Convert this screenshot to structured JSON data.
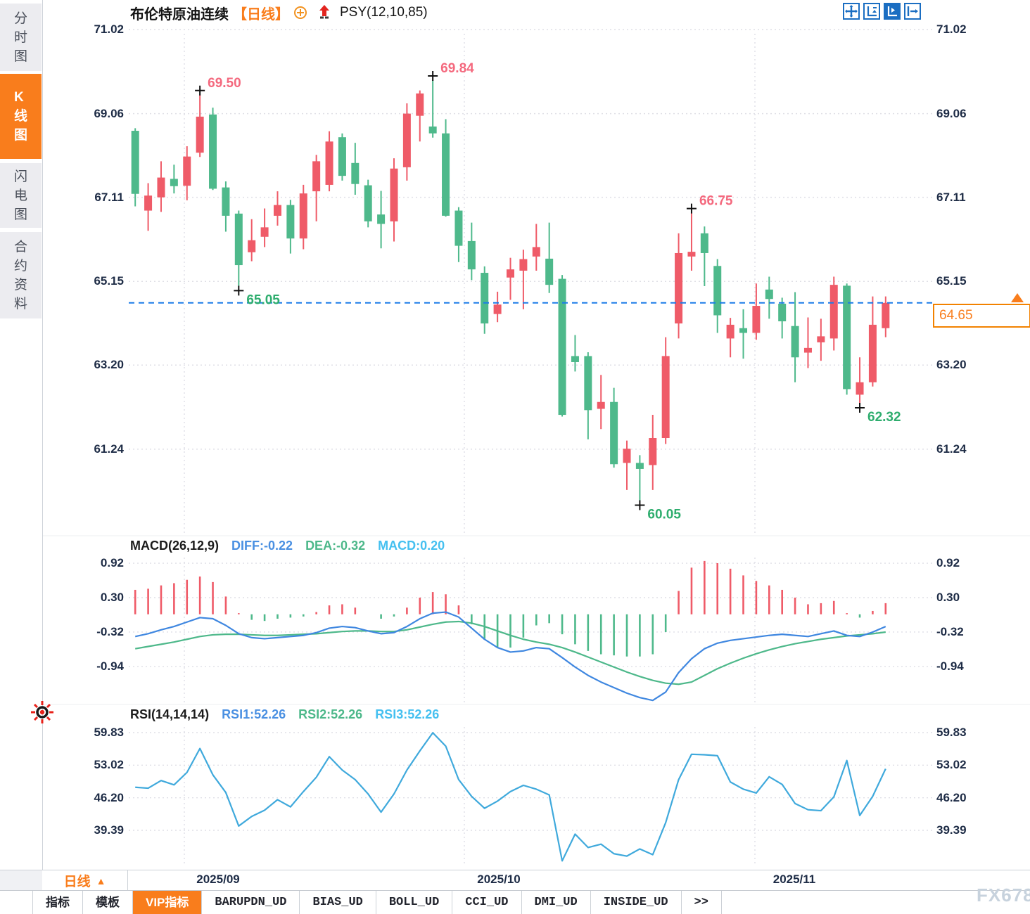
{
  "sidebar": {
    "tabs": [
      {
        "label": "分时图",
        "active": false
      },
      {
        "label": "K线图",
        "active": true
      },
      {
        "label": "闪电图",
        "active": false
      },
      {
        "label": "合约资料",
        "active": false
      }
    ]
  },
  "header": {
    "symbol": "布伦特原油连续",
    "period_tag": "【日线】",
    "indicator": "PSY(12,10,85)"
  },
  "toolbar": {
    "buttons": [
      "crosshair",
      "axis-scale-vertical",
      "axis-scale-auto",
      "pan-right"
    ]
  },
  "price_marker": {
    "value": "64.65",
    "color": "#f97d1c"
  },
  "period_selector": {
    "label": "日线",
    "arrow": "▲"
  },
  "xaxis_labels": [
    "2025/09",
    "2025/10",
    "2025/11"
  ],
  "footer_tabs": [
    "指标",
    "模板",
    "VIP指标",
    "BARUPDN_UD",
    "BIAS_UD",
    "BOLL_UD",
    "CCI_UD",
    "DMI_UD",
    "INSIDE_UD",
    ">>"
  ],
  "watermark": "FX678",
  "macd_header": {
    "name": "MACD(26,12,9)",
    "diff": "DIFF:-0.22",
    "dea": "DEA:-0.32",
    "macd": "MACD:0.20"
  },
  "rsi_header": {
    "name": "RSI(14,14,14)",
    "rsi1": "RSI1:52.26",
    "rsi2": "RSI2:52.26",
    "rsi3": "RSI3:52.26"
  },
  "colors": {
    "up": "#ef5b68",
    "down": "#4eb98b",
    "accent_orange": "#f97d1c",
    "dashed_line_blue": "#1b7ce8",
    "ann_high": "#f4697e",
    "ann_low": "#2ead6e",
    "diff_line": "#3f87e0",
    "dea_line": "#4db88a",
    "rsi_line": "#3fa9dc",
    "grid": "#dfdfe6",
    "axis_text": "#1d2b45",
    "toolbar_blue": "#1b6ec2"
  },
  "chart_data": [
    {
      "type": "candlestick",
      "title": "布伦特原油连续 日线",
      "y_ticks": [
        71.02,
        69.06,
        67.11,
        65.15,
        63.2,
        61.24
      ],
      "ylim": [
        60.0,
        71.35
      ],
      "x_labels": [
        "2025/09",
        "2025/10",
        "2025/11"
      ],
      "grid": "dotted",
      "last_price": 64.65,
      "ohlc": [
        [
          68.66,
          68.72,
          66.9,
          67.19
        ],
        [
          66.8,
          67.44,
          66.33,
          67.15
        ],
        [
          67.11,
          67.95,
          66.77,
          67.57
        ],
        [
          67.54,
          67.87,
          67.2,
          67.37
        ],
        [
          67.38,
          68.3,
          67.04,
          68.06
        ],
        [
          68.15,
          69.5,
          68.05,
          68.99
        ],
        [
          69.04,
          69.2,
          67.28,
          67.31
        ],
        [
          67.34,
          67.48,
          66.31,
          66.68
        ],
        [
          66.73,
          66.8,
          65.05,
          65.53
        ],
        [
          65.83,
          66.6,
          65.62,
          66.11
        ],
        [
          66.19,
          66.85,
          65.95,
          66.41
        ],
        [
          66.68,
          67.25,
          66.45,
          66.93
        ],
        [
          66.93,
          67.05,
          65.8,
          66.15
        ],
        [
          66.15,
          67.4,
          65.9,
          67.2
        ],
        [
          67.25,
          68.1,
          66.55,
          67.95
        ],
        [
          67.4,
          68.65,
          67.25,
          68.41
        ],
        [
          68.51,
          68.6,
          67.5,
          67.61
        ],
        [
          67.91,
          68.38,
          67.17,
          67.42
        ],
        [
          67.39,
          67.52,
          66.41,
          66.55
        ],
        [
          66.71,
          67.26,
          65.92,
          66.49
        ],
        [
          66.55,
          68.02,
          66.08,
          67.78
        ],
        [
          67.81,
          69.3,
          67.5,
          69.06
        ],
        [
          69.01,
          69.6,
          68.41,
          69.53
        ],
        [
          68.76,
          69.84,
          68.5,
          68.6
        ],
        [
          68.6,
          68.93,
          66.66,
          66.68
        ],
        [
          66.8,
          66.88,
          65.6,
          65.98
        ],
        [
          66.09,
          66.52,
          65.18,
          65.43
        ],
        [
          65.35,
          65.5,
          63.93,
          64.17
        ],
        [
          64.39,
          64.91,
          64.2,
          64.61
        ],
        [
          65.24,
          65.7,
          64.72,
          65.43
        ],
        [
          65.4,
          65.89,
          64.5,
          65.67
        ],
        [
          65.73,
          66.49,
          65.4,
          65.95
        ],
        [
          65.68,
          66.52,
          64.88,
          65.07
        ],
        [
          65.21,
          65.3,
          62.0,
          62.04
        ],
        [
          63.41,
          63.9,
          63.05,
          63.27
        ],
        [
          63.41,
          63.5,
          61.47,
          62.15
        ],
        [
          62.18,
          62.97,
          61.71,
          62.34
        ],
        [
          62.34,
          62.67,
          60.81,
          60.89
        ],
        [
          60.92,
          61.44,
          60.29,
          61.25
        ],
        [
          60.92,
          61.1,
          60.05,
          60.78
        ],
        [
          60.87,
          62.04,
          60.29,
          61.5
        ],
        [
          61.5,
          63.85,
          61.36,
          63.41
        ],
        [
          64.17,
          66.27,
          63.82,
          65.81
        ],
        [
          65.73,
          66.75,
          65.4,
          65.84
        ],
        [
          66.27,
          66.43,
          65.04,
          65.81
        ],
        [
          65.51,
          65.67,
          63.95,
          64.36
        ],
        [
          63.82,
          64.3,
          63.38,
          64.14
        ],
        [
          64.06,
          64.5,
          63.35,
          63.95
        ],
        [
          63.95,
          65.1,
          63.79,
          64.58
        ],
        [
          64.96,
          65.26,
          64.28,
          64.74
        ],
        [
          64.63,
          64.77,
          63.82,
          64.22
        ],
        [
          64.11,
          64.9,
          62.8,
          63.38
        ],
        [
          63.49,
          64.31,
          63.13,
          63.6
        ],
        [
          63.73,
          64.28,
          63.3,
          63.87
        ],
        [
          63.82,
          65.26,
          63.54,
          65.07
        ],
        [
          65.05,
          65.1,
          62.51,
          62.64
        ],
        [
          62.51,
          63.38,
          62.32,
          62.8
        ],
        [
          62.8,
          64.8,
          62.7,
          64.14
        ],
        [
          64.06,
          64.8,
          63.85,
          64.65
        ]
      ],
      "annotations": [
        {
          "i": 5,
          "side": "high",
          "label": "69.50"
        },
        {
          "i": 23,
          "side": "high",
          "label": "69.84"
        },
        {
          "i": 43,
          "side": "high",
          "label": "66.75"
        },
        {
          "i": 8,
          "side": "low",
          "label": "65.05"
        },
        {
          "i": 39,
          "side": "low",
          "label": "60.05"
        },
        {
          "i": 56,
          "side": "low",
          "label": "62.32"
        }
      ]
    },
    {
      "type": "macd",
      "name": "MACD(26,12,9)",
      "y_ticks": [
        0.92,
        0.3,
        -0.32,
        -0.94
      ],
      "current": {
        "diff": -0.22,
        "dea": -0.32,
        "macd": 0.2
      },
      "hist_rule": "2*(diff-dea)",
      "diff": [
        -0.4,
        -0.35,
        -0.28,
        -0.22,
        -0.14,
        -0.06,
        -0.08,
        -0.2,
        -0.35,
        -0.42,
        -0.44,
        -0.42,
        -0.4,
        -0.38,
        -0.33,
        -0.25,
        -0.22,
        -0.24,
        -0.3,
        -0.35,
        -0.33,
        -0.22,
        -0.08,
        0.02,
        0.04,
        -0.05,
        -0.25,
        -0.45,
        -0.6,
        -0.68,
        -0.66,
        -0.6,
        -0.62,
        -0.78,
        -0.95,
        -1.1,
        -1.22,
        -1.32,
        -1.42,
        -1.5,
        -1.55,
        -1.4,
        -1.05,
        -0.8,
        -0.62,
        -0.52,
        -0.47,
        -0.44,
        -0.41,
        -0.38,
        -0.36,
        -0.38,
        -0.4,
        -0.35,
        -0.3,
        -0.38,
        -0.4,
        -0.32,
        -0.22
      ],
      "dea": [
        -0.62,
        -0.58,
        -0.54,
        -0.5,
        -0.45,
        -0.4,
        -0.37,
        -0.36,
        -0.36,
        -0.37,
        -0.38,
        -0.38,
        -0.37,
        -0.36,
        -0.35,
        -0.33,
        -0.31,
        -0.3,
        -0.3,
        -0.31,
        -0.31,
        -0.28,
        -0.23,
        -0.18,
        -0.14,
        -0.13,
        -0.16,
        -0.22,
        -0.3,
        -0.38,
        -0.45,
        -0.5,
        -0.54,
        -0.6,
        -0.68,
        -0.77,
        -0.86,
        -0.95,
        -1.04,
        -1.12,
        -1.19,
        -1.24,
        -1.26,
        -1.22,
        -1.1,
        -0.98,
        -0.88,
        -0.79,
        -0.71,
        -0.64,
        -0.58,
        -0.53,
        -0.49,
        -0.45,
        -0.42,
        -0.39,
        -0.37,
        -0.35,
        -0.32
      ]
    },
    {
      "type": "rsi",
      "name": "RSI(14,14,14)",
      "y_ticks": [
        59.83,
        53.02,
        46.2,
        39.39
      ],
      "current": {
        "rsi1": 52.26,
        "rsi2": 52.26,
        "rsi3": 52.26
      },
      "values": [
        48.4,
        48.2,
        49.8,
        48.9,
        51.5,
        56.5,
        51.0,
        47.3,
        40.3,
        42.3,
        43.6,
        45.8,
        44.3,
        47.5,
        50.5,
        54.8,
        52.0,
        50.0,
        47.0,
        43.2,
        47.0,
        52.0,
        56.0,
        59.8,
        57.0,
        50.0,
        46.5,
        44.0,
        45.5,
        47.5,
        48.8,
        48.0,
        46.8,
        33.0,
        38.6,
        35.8,
        36.5,
        34.5,
        34.0,
        35.5,
        34.3,
        41.0,
        50.0,
        55.3,
        55.2,
        55.0,
        49.5,
        48.0,
        47.2,
        50.6,
        49.0,
        45.0,
        43.7,
        43.5,
        46.4,
        54.0,
        42.5,
        46.5,
        52.26
      ]
    }
  ]
}
